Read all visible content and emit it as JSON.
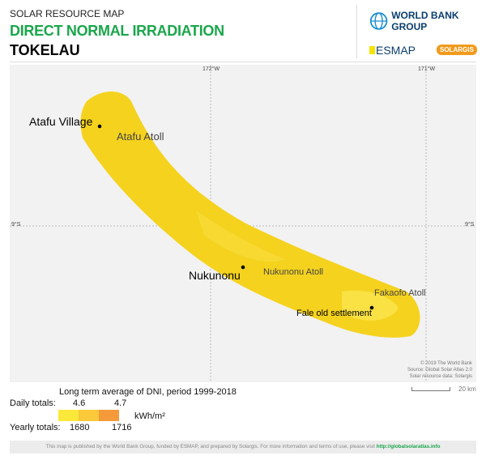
{
  "header": {
    "supertitle": "SOLAR RESOURCE MAP",
    "title": "DIRECT NORMAL IRRADIATION",
    "country": "TOKELAU"
  },
  "logos": {
    "world_bank": "WORLD BANK GROUP",
    "esmap": "ESMAP",
    "solargis": "SOLARGIS"
  },
  "map": {
    "grid_labels": {
      "lon1": "172°W",
      "lon2": "171°W",
      "lat": "9°S"
    },
    "places": {
      "atafu_village": "Atafu Village",
      "atafu_atoll": "Atafu Atoll",
      "nukunonu": "Nukunonu",
      "nukunonu_atoll": "Nukunonu Atoll",
      "fakaofo_atoll": "Fakaofo Atoll",
      "fale": "Fale old settlement"
    },
    "credits": [
      "© 2019 The World Bank",
      "Source: Global Solar Atlas 2.0",
      "Solar resource data: Solargis"
    ],
    "scale": "20 km",
    "colors": {
      "land": "#f5d21e",
      "background": "#f2f2f2"
    }
  },
  "legend": {
    "title": "Long term average of DNI, period 1999-2018",
    "daily_label": "Daily totals:",
    "daily_min": "4.6",
    "daily_max": "4.7",
    "yearly_label": "Yearly totals:",
    "yearly_min": "1680",
    "yearly_max": "1716",
    "unit": "kWh/m²",
    "colors": [
      "#fbe839",
      "#fbc93a",
      "#f59a3a"
    ]
  },
  "footer": {
    "text": "This map is published by the World Bank Group, funded by ESMAP, and prepared by Solargis. For more information and terms of use, please visit ",
    "link": "http://globalsolaratlas.info"
  }
}
